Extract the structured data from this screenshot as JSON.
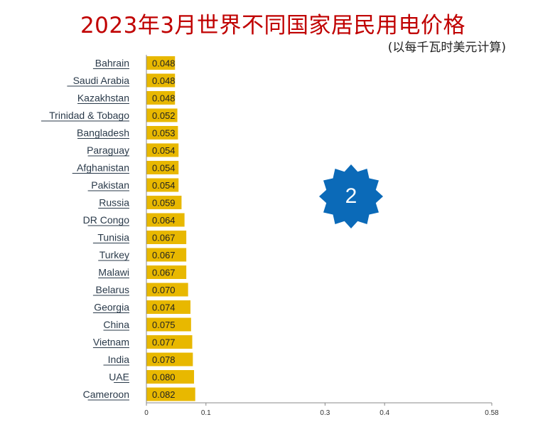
{
  "title": "2023年3月世界不同国家居民用电价格",
  "subtitle": "(以每千瓦时美元计算)",
  "badge": {
    "number": "2",
    "color": "#0b6ab8"
  },
  "colors": {
    "bar": "#e8b800",
    "title": "#c00000",
    "axis": "#888888"
  },
  "chart_data": {
    "type": "bar",
    "orientation": "horizontal",
    "categories": [
      "Bahrain",
      "Saudi Arabia",
      "Kazakhstan",
      "Trinidad & Tobago",
      "Bangladesh",
      "Paraguay",
      "Afghanistan",
      "Pakistan",
      "Russia",
      "DR Congo",
      "Tunisia",
      "Turkey",
      "Malawi",
      "Belarus",
      "Georgia",
      "China",
      "Vietnam",
      "India",
      "UAE",
      "Cameroon"
    ],
    "values": [
      0.048,
      0.048,
      0.048,
      0.052,
      0.053,
      0.054,
      0.054,
      0.054,
      0.059,
      0.064,
      0.067,
      0.067,
      0.067,
      0.07,
      0.074,
      0.075,
      0.077,
      0.078,
      0.08,
      0.082
    ],
    "value_labels": [
      "0.048",
      "0.048",
      "0.048",
      "0.052",
      "0.053",
      "0.054",
      "0.054",
      "0.054",
      "0.059",
      "0.064",
      "0.067",
      "0.067",
      "0.067",
      "0.070",
      "0.074",
      "0.075",
      "0.077",
      "0.078",
      "0.080",
      "0.082"
    ],
    "xticks": [
      0,
      0.1,
      0.3,
      0.4,
      0.58
    ],
    "xtick_labels": [
      "0",
      "0.1",
      "0.3",
      "0.4",
      "0.58"
    ],
    "xlim": [
      0,
      0.58
    ],
    "grid": false,
    "legend": "none",
    "title": "2023年3月世界不同国家居民用电价格",
    "xlabel": "",
    "ylabel": ""
  }
}
